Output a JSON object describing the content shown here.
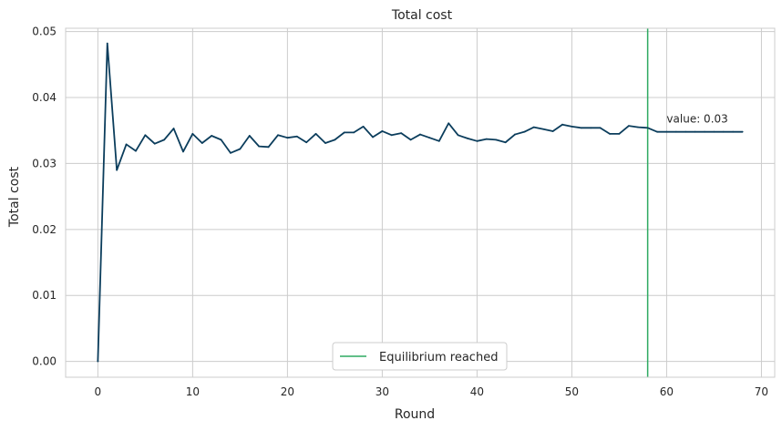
{
  "chart_data": {
    "type": "line",
    "title": "Total cost",
    "xlabel": "Round",
    "ylabel": "Total cost",
    "xlim": [
      -3.4,
      71.4
    ],
    "ylim": [
      -0.0024,
      0.0505
    ],
    "xticks": [
      0,
      10,
      20,
      30,
      40,
      50,
      60,
      70
    ],
    "xtick_labels": [
      "0",
      "10",
      "20",
      "30",
      "40",
      "50",
      "60",
      "70"
    ],
    "yticks": [
      0.0,
      0.01,
      0.02,
      0.03,
      0.04,
      0.05
    ],
    "ytick_labels": [
      "0.00",
      "0.01",
      "0.02",
      "0.03",
      "0.04",
      "0.05"
    ],
    "grid": true,
    "series": [
      {
        "name": "",
        "color": "#0b3d5c",
        "x": [
          0,
          1,
          2,
          3,
          4,
          5,
          6,
          7,
          8,
          9,
          10,
          11,
          12,
          13,
          14,
          15,
          16,
          17,
          18,
          19,
          20,
          21,
          22,
          23,
          24,
          25,
          26,
          27,
          28,
          29,
          30,
          31,
          32,
          33,
          34,
          35,
          36,
          37,
          38,
          39,
          40,
          41,
          42,
          43,
          44,
          45,
          46,
          47,
          48,
          49,
          50,
          51,
          52,
          53,
          54,
          55,
          56,
          57,
          58,
          59,
          60,
          61,
          62,
          63,
          64,
          65,
          66,
          67,
          68
        ],
        "y": [
          0.0,
          0.0482,
          0.029,
          0.0329,
          0.0319,
          0.0343,
          0.033,
          0.0336,
          0.0353,
          0.0318,
          0.0345,
          0.0331,
          0.0342,
          0.0336,
          0.0316,
          0.0322,
          0.0342,
          0.0326,
          0.0325,
          0.0343,
          0.0339,
          0.0341,
          0.0332,
          0.0345,
          0.0331,
          0.0336,
          0.0347,
          0.0347,
          0.0356,
          0.034,
          0.0349,
          0.0343,
          0.0346,
          0.0336,
          0.0344,
          0.0339,
          0.0334,
          0.0361,
          0.0343,
          0.0338,
          0.0334,
          0.0337,
          0.0336,
          0.0332,
          0.0344,
          0.0348,
          0.0355,
          0.0352,
          0.0349,
          0.0359,
          0.0356,
          0.0354,
          0.0354,
          0.0354,
          0.0345,
          0.0345,
          0.0357,
          0.0355,
          0.0354,
          0.0348,
          0.0348,
          0.0348,
          0.0348,
          0.0348,
          0.0348,
          0.0348,
          0.0348,
          0.0348,
          0.0348
        ]
      }
    ],
    "vline": {
      "x": 58,
      "color": "#2eaa61",
      "label": "Equilibrium reached"
    },
    "annotation": {
      "text": "value: 0.03",
      "x": 60,
      "y": 0.0362
    },
    "legend_position": "bottom-center"
  }
}
